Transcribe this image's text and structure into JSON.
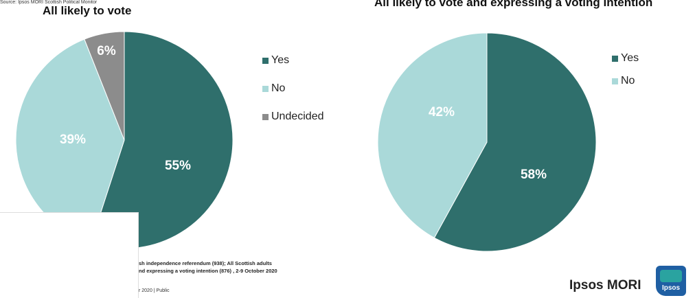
{
  "chart_data": [
    {
      "type": "pie",
      "title": "All likely to vote",
      "categories": [
        "Yes",
        "No",
        "Undecided"
      ],
      "values": [
        55,
        39,
        6
      ],
      "labels": [
        "55%",
        "39%",
        "6%"
      ],
      "colors": [
        "#2f6f6c",
        "#aad9d9",
        "#8c8c8c"
      ],
      "legend_position": "right"
    },
    {
      "type": "pie",
      "title": "All likely to vote and expressing a voting intention",
      "categories": [
        "Yes",
        "No"
      ],
      "values": [
        58,
        42
      ],
      "labels": [
        "58%",
        "42%"
      ],
      "colors": [
        "#2f6f6c",
        "#aad9d9"
      ],
      "legend_position": "right"
    }
  ],
  "footnote": {
    "line1": "sh independence referendum (938); All Scottish adults",
    "line2": "nd expressing a voting intention (876) , 2-9 October 2020",
    "date": "r 2020 | Public"
  },
  "source": "Source: Ipsos MORI Scottish Political Monitor",
  "brand": "Ipsos MORI",
  "logo_text": "Ipsos"
}
